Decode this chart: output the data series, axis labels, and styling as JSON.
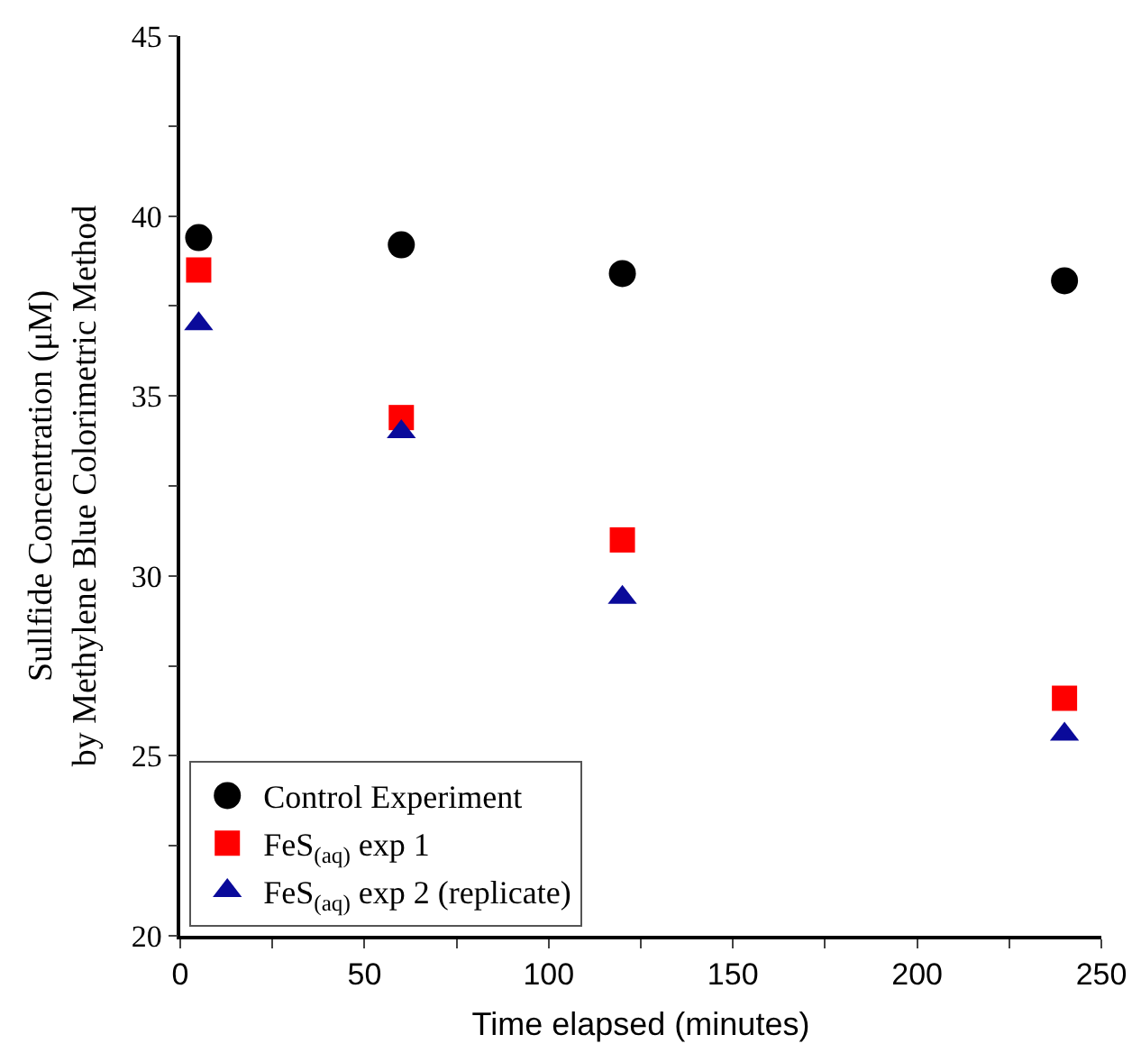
{
  "chart_data": {
    "type": "scatter",
    "xlabel": "Time elapsed (minutes)",
    "ylabel": "Sullfide Concentration (μM)\nby Methylene Blue Colorimetric Method",
    "x": [
      5,
      60,
      120,
      240
    ],
    "series": [
      {
        "name": "Control Experiment",
        "color": "#000000",
        "marker": "circle",
        "values": [
          39.4,
          39.2,
          38.4,
          38.2
        ]
      },
      {
        "name": "FeS$_{(aq)}$ exp 1",
        "color": "#ff0000",
        "marker": "square",
        "values": [
          38.5,
          34.4,
          31.0,
          26.6
        ]
      },
      {
        "name": "FeS$_{(aq)}$ exp 2 (replicate)",
        "color": "#0a0a9a",
        "marker": "triangle",
        "values": [
          37.0,
          34.0,
          29.4,
          25.6
        ]
      }
    ],
    "xlim": [
      0,
      250
    ],
    "xticks": [
      0,
      {
        "value": 25,
        "label": null
      },
      50,
      {
        "value": 75,
        "label": null
      },
      100,
      {
        "value": 125,
        "label": null
      },
      150,
      {
        "value": 175,
        "label": null
      },
      200,
      {
        "value": 225,
        "label": null
      },
      250
    ],
    "ylim": [
      20,
      45
    ],
    "yticks": [
      20,
      {
        "value": 22.5,
        "label": null
      },
      25,
      {
        "value": 27.5,
        "label": null
      },
      30,
      {
        "value": 32.5,
        "label": null
      },
      35,
      {
        "value": 37.5,
        "label": null
      },
      40,
      {
        "value": 42.5,
        "label": null
      },
      45
    ],
    "grid": false,
    "legend": "bottom left"
  }
}
